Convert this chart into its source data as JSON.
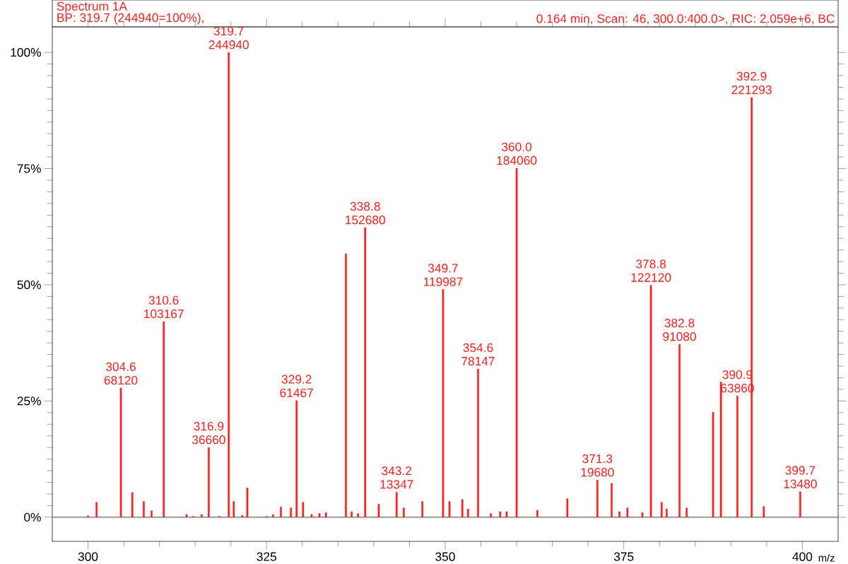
{
  "chart_data": {
    "type": "bar",
    "title": "Spectrum 1A",
    "subtitle": "BP: 319.7 (244940=100%),",
    "xlabel": "m/z",
    "annotations": [
      "0.164 min, Scan: 46, 300.0:400.0>, RIC: 2.059e+6, BC",
      {
        "text": "304.6",
        "x": 304.6,
        "y": 27.8
      },
      {
        "text": "68120",
        "x": 304.6,
        "y": 27.8
      },
      {
        "text": "310.6",
        "x": 310.6,
        "y": 42.1
      },
      {
        "text": "103167",
        "x": 310.6,
        "y": 42.1
      },
      {
        "text": "316.9",
        "x": 316.9,
        "y": 15.0
      },
      {
        "text": "36660",
        "x": 316.9,
        "y": 15.0
      },
      {
        "text": "319.7",
        "x": 319.7,
        "y": 100
      },
      {
        "text": "244940",
        "x": 319.7,
        "y": 100
      },
      {
        "text": "329.2",
        "x": 329.2,
        "y": 25.1
      },
      {
        "text": "61467",
        "x": 329.2,
        "y": 25.1
      },
      {
        "text": "338.8",
        "x": 338.8,
        "y": 62.3
      },
      {
        "text": "152680",
        "x": 338.8,
        "y": 62.3
      },
      {
        "text": "343.2",
        "x": 343.2,
        "y": 5.4
      },
      {
        "text": "13347",
        "x": 343.2,
        "y": 5.4
      },
      {
        "text": "349.7",
        "x": 349.7,
        "y": 49.0
      },
      {
        "text": "119987",
        "x": 349.7,
        "y": 49.0
      },
      {
        "text": "354.6",
        "x": 354.6,
        "y": 31.9
      },
      {
        "text": "78147",
        "x": 354.6,
        "y": 31.9
      },
      {
        "text": "360.0",
        "x": 360.0,
        "y": 75.1
      },
      {
        "text": "184060",
        "x": 360.0,
        "y": 75.1
      },
      {
        "text": "371.3",
        "x": 371.3,
        "y": 8.0
      },
      {
        "text": "19680",
        "x": 371.3,
        "y": 8.0
      },
      {
        "text": "378.8",
        "x": 378.8,
        "y": 49.9
      },
      {
        "text": "122120",
        "x": 378.8,
        "y": 49.9
      },
      {
        "text": "382.8",
        "x": 382.8,
        "y": 37.2
      },
      {
        "text": "91080",
        "x": 382.8,
        "y": 37.2
      },
      {
        "text": "390.9",
        "x": 390.9,
        "y": 26.1
      },
      {
        "text": "63860",
        "x": 390.9,
        "y": 26.1
      },
      {
        "text": "392.9",
        "x": 392.9,
        "y": 90.3
      },
      {
        "text": "221293",
        "x": 392.9,
        "y": 90.3
      },
      {
        "text": "399.7",
        "x": 399.7,
        "y": 5.5
      },
      {
        "text": "13480",
        "x": 399.7,
        "y": 5.5
      }
    ],
    "x": [
      300.0,
      301.2,
      304.6,
      306.2,
      307.8,
      308.9,
      310.6,
      313.8,
      314.7,
      315.9,
      316.9,
      318.4,
      319.7,
      320.4,
      321.6,
      322.3,
      325.0,
      325.9,
      327.0,
      328.4,
      329.2,
      330.1,
      331.3,
      332.4,
      333.3,
      336.1,
      336.9,
      337.8,
      338.8,
      340.7,
      343.2,
      344.2,
      346.8,
      349.7,
      350.6,
      352.4,
      353.2,
      354.6,
      356.4,
      357.7,
      358.6,
      360.0,
      362.9,
      367.1,
      371.3,
      373.3,
      374.4,
      375.5,
      377.6,
      378.8,
      380.3,
      381.0,
      382.8,
      383.8,
      387.5,
      388.6,
      390.9,
      392.9,
      394.6,
      399.7
    ],
    "values": [
      0.3,
      3.2,
      27.8,
      5.3,
      3.4,
      1.4,
      42.1,
      0.6,
      0.2,
      0.6,
      15.0,
      0.2,
      100,
      3.4,
      0.4,
      6.3,
      0.2,
      0.6,
      2.2,
      2.0,
      25.1,
      3.2,
      0.6,
      0.8,
      1.0,
      56.7,
      1.2,
      0.8,
      62.3,
      2.8,
      5.4,
      2.0,
      3.4,
      49.0,
      3.4,
      3.8,
      1.8,
      31.9,
      0.8,
      1.2,
      1.2,
      75.1,
      1.5,
      4.0,
      8.0,
      7.3,
      1.2,
      2.0,
      1.0,
      49.9,
      3.2,
      1.8,
      37.2,
      2.0,
      22.6,
      29.1,
      26.1,
      90.3,
      2.3,
      5.5
    ],
    "color": "#ff2020",
    "ref_lines": [
      {
        "axis": "y",
        "value": 0,
        "color": "#808080"
      }
    ],
    "xlim": [
      295,
      405
    ],
    "ylim": [
      -5.2,
      105.5
    ],
    "xticks": [
      300,
      325,
      350,
      375,
      400
    ],
    "yticks": [
      {
        "value": 0,
        "label": "0%"
      },
      {
        "value": 25,
        "label": "25%"
      },
      {
        "value": 50,
        "label": "50%"
      },
      {
        "value": 75,
        "label": "75%"
      },
      {
        "value": 100,
        "label": "100%"
      }
    ]
  }
}
